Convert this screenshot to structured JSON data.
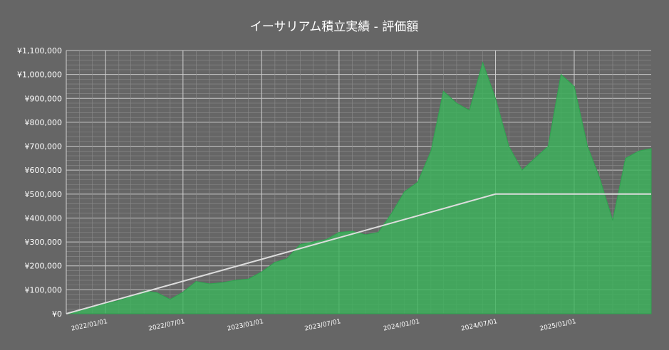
{
  "chart_data": {
    "type": "area",
    "title": "イーサリアム積立実績 - 評価額",
    "xlabel": "",
    "ylabel": "",
    "x_range": [
      "2021-10-01",
      "2025-06-30"
    ],
    "ylim": [
      0,
      1100000
    ],
    "grid": true,
    "legend": "none",
    "y_ticks": [
      "¥0",
      "¥100,000",
      "¥200,000",
      "¥300,000",
      "¥400,000",
      "¥500,000",
      "¥600,000",
      "¥700,000",
      "¥800,000",
      "¥900,000",
      "¥1,000,000",
      "¥1,100,000"
    ],
    "x_ticks": [
      "2022/01/01",
      "2022/07/01",
      "2023/01/01",
      "2023/07/01",
      "2024/01/01",
      "2024/07/01",
      "2025/01/01"
    ],
    "x_tick_dates": [
      "2022-01-01",
      "2022-07-01",
      "2023-01-01",
      "2023-07-01",
      "2024-01-01",
      "2024-07-01",
      "2025-01-01"
    ],
    "series": [
      {
        "kind": "area",
        "color": "#3cb35c",
        "points": [
          [
            "2021-10-01",
            0
          ],
          [
            "2021-11-01",
            15000
          ],
          [
            "2021-12-01",
            30000
          ],
          [
            "2022-01-01",
            42000
          ],
          [
            "2022-02-01",
            55000
          ],
          [
            "2022-03-01",
            72000
          ],
          [
            "2022-04-01",
            95000
          ],
          [
            "2022-05-01",
            88000
          ],
          [
            "2022-06-01",
            60000
          ],
          [
            "2022-07-01",
            90000
          ],
          [
            "2022-08-01",
            135000
          ],
          [
            "2022-09-01",
            125000
          ],
          [
            "2022-10-01",
            130000
          ],
          [
            "2022-11-01",
            140000
          ],
          [
            "2022-12-01",
            145000
          ],
          [
            "2023-01-01",
            175000
          ],
          [
            "2023-02-01",
            215000
          ],
          [
            "2023-03-01",
            230000
          ],
          [
            "2023-04-01",
            290000
          ],
          [
            "2023-05-01",
            300000
          ],
          [
            "2023-06-01",
            310000
          ],
          [
            "2023-07-01",
            340000
          ],
          [
            "2023-08-01",
            345000
          ],
          [
            "2023-09-01",
            330000
          ],
          [
            "2023-10-01",
            340000
          ],
          [
            "2023-11-01",
            420000
          ],
          [
            "2023-12-01",
            510000
          ],
          [
            "2024-01-01",
            550000
          ],
          [
            "2024-02-01",
            680000
          ],
          [
            "2024-03-01",
            930000
          ],
          [
            "2024-04-01",
            880000
          ],
          [
            "2024-05-01",
            850000
          ],
          [
            "2024-06-01",
            1050000
          ],
          [
            "2024-07-01",
            900000
          ],
          [
            "2024-08-01",
            700000
          ],
          [
            "2024-09-01",
            600000
          ],
          [
            "2024-10-01",
            650000
          ],
          [
            "2024-11-01",
            700000
          ],
          [
            "2024-12-01",
            1000000
          ],
          [
            "2025-01-01",
            950000
          ],
          [
            "2025-02-01",
            700000
          ],
          [
            "2025-03-01",
            570000
          ],
          [
            "2025-04-01",
            390000
          ],
          [
            "2025-05-01",
            650000
          ],
          [
            "2025-06-01",
            680000
          ],
          [
            "2025-06-30",
            690000
          ]
        ]
      },
      {
        "kind": "line",
        "color": "#dddddd",
        "points": [
          [
            "2021-10-01",
            0
          ],
          [
            "2024-07-01",
            500000
          ],
          [
            "2025-06-30",
            500000
          ]
        ]
      }
    ]
  }
}
